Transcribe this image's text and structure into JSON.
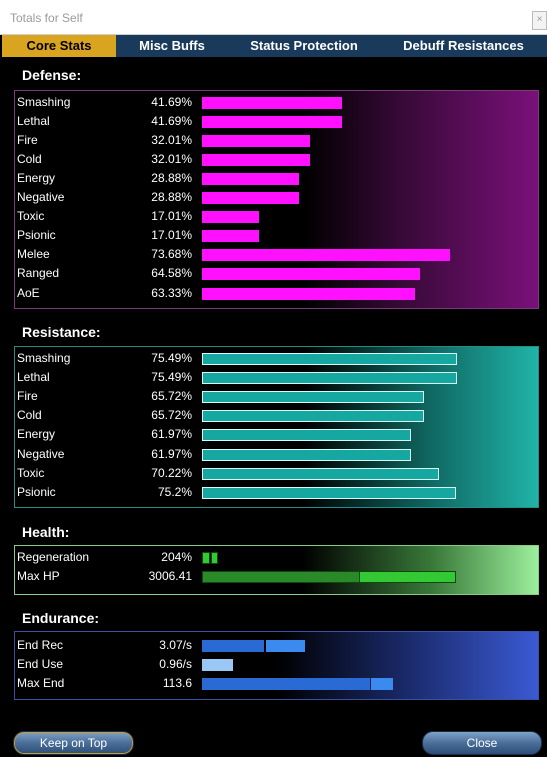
{
  "window": {
    "title": "Totals for Self",
    "close_glyph": "×"
  },
  "tabs": [
    {
      "label": "Core Stats",
      "active": true
    },
    {
      "label": "Misc Buffs",
      "active": false
    },
    {
      "label": "Status Protection",
      "active": false
    },
    {
      "label": "Debuff Resistances",
      "active": false
    }
  ],
  "defense": {
    "header": "Defense:",
    "color": "#ff10ff",
    "rows": [
      {
        "label": "Smashing",
        "value": "41.69%",
        "pct": 41.69
      },
      {
        "label": "Lethal",
        "value": "41.69%",
        "pct": 41.69
      },
      {
        "label": "Fire",
        "value": "32.01%",
        "pct": 32.01
      },
      {
        "label": "Cold",
        "value": "32.01%",
        "pct": 32.01
      },
      {
        "label": "Energy",
        "value": "28.88%",
        "pct": 28.88
      },
      {
        "label": "Negative",
        "value": "28.88%",
        "pct": 28.88
      },
      {
        "label": "Toxic",
        "value": "17.01%",
        "pct": 17.01
      },
      {
        "label": "Psionic",
        "value": "17.01%",
        "pct": 17.01
      },
      {
        "label": "Melee",
        "value": "73.68%",
        "pct": 73.68
      },
      {
        "label": "Ranged",
        "value": "64.58%",
        "pct": 64.58
      },
      {
        "label": "AoE",
        "value": "63.33%",
        "pct": 63.33
      }
    ]
  },
  "resistance": {
    "header": "Resistance:",
    "color": "#16a8a0",
    "rows": [
      {
        "label": "Smashing",
        "value": "75.49%",
        "pct": 75.49
      },
      {
        "label": "Lethal",
        "value": "75.49%",
        "pct": 75.49
      },
      {
        "label": "Fire",
        "value": "65.72%",
        "pct": 65.72
      },
      {
        "label": "Cold",
        "value": "65.72%",
        "pct": 65.72
      },
      {
        "label": "Energy",
        "value": "61.97%",
        "pct": 61.97
      },
      {
        "label": "Negative",
        "value": "61.97%",
        "pct": 61.97
      },
      {
        "label": "Toxic",
        "value": "70.22%",
        "pct": 70.22
      },
      {
        "label": "Psionic",
        "value": "75.2%",
        "pct": 75.2
      }
    ]
  },
  "health": {
    "header": "Health:",
    "rows": [
      {
        "label": "Regeneration",
        "value": "204%"
      },
      {
        "label": "Max HP",
        "value": "3006.41"
      }
    ]
  },
  "endurance": {
    "header": "Endurance:",
    "rows": [
      {
        "label": "End Rec",
        "value": "3.07/s"
      },
      {
        "label": "End Use",
        "value": "0.96/s"
      },
      {
        "label": "Max End",
        "value": "113.6"
      }
    ]
  },
  "buttons": {
    "keep_on_top": "Keep on Top",
    "close": "Close"
  }
}
